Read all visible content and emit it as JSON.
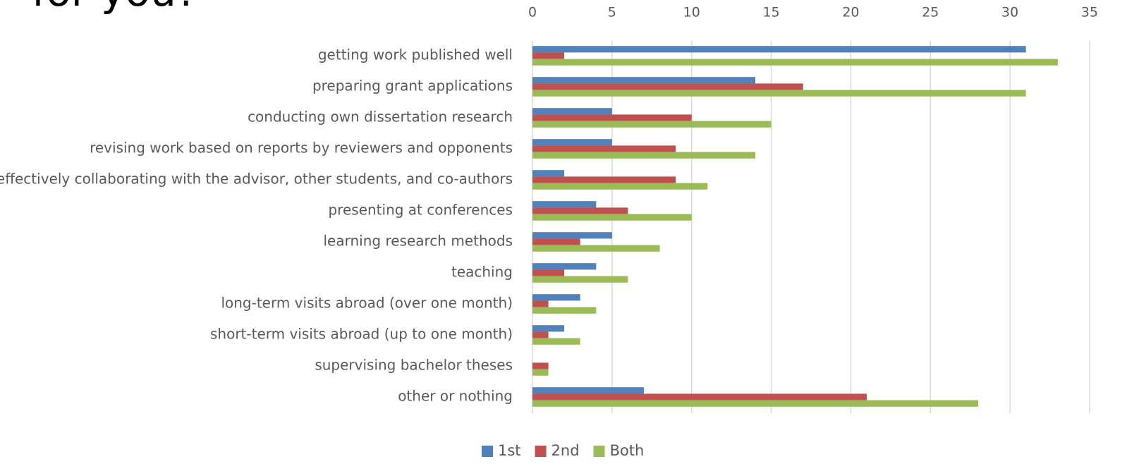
{
  "chart_data": {
    "type": "bar",
    "orientation": "horizontal",
    "title": "for you?",
    "categories": [
      "getting work published well",
      "preparing grant applications",
      "conducting own dissertation research",
      "revising work based on reports by reviewers and opponents",
      "effectively collaborating with the advisor, other students, and co-authors",
      "presenting at conferences",
      "learning research methods",
      "teaching",
      "long-term visits abroad (over one month)",
      "short-term visits abroad (up to one month)",
      "supervising bachelor theses",
      "other or nothing"
    ],
    "series": [
      {
        "name": "1st",
        "color": "#4f81bd",
        "values": [
          31,
          14,
          5,
          5,
          2,
          4,
          5,
          4,
          3,
          2,
          0,
          7
        ]
      },
      {
        "name": "2nd",
        "color": "#c0504d",
        "values": [
          2,
          17,
          10,
          9,
          9,
          6,
          3,
          2,
          1,
          1,
          1,
          21
        ]
      },
      {
        "name": "Both",
        "color": "#9bbb59",
        "values": [
          33,
          31,
          15,
          14,
          11,
          10,
          8,
          6,
          4,
          3,
          1,
          28
        ]
      }
    ],
    "xlim": [
      0,
      35
    ],
    "xticks": [
      0,
      5,
      10,
      15,
      20,
      25,
      30,
      35
    ],
    "grid": true,
    "legend": "bottom"
  }
}
